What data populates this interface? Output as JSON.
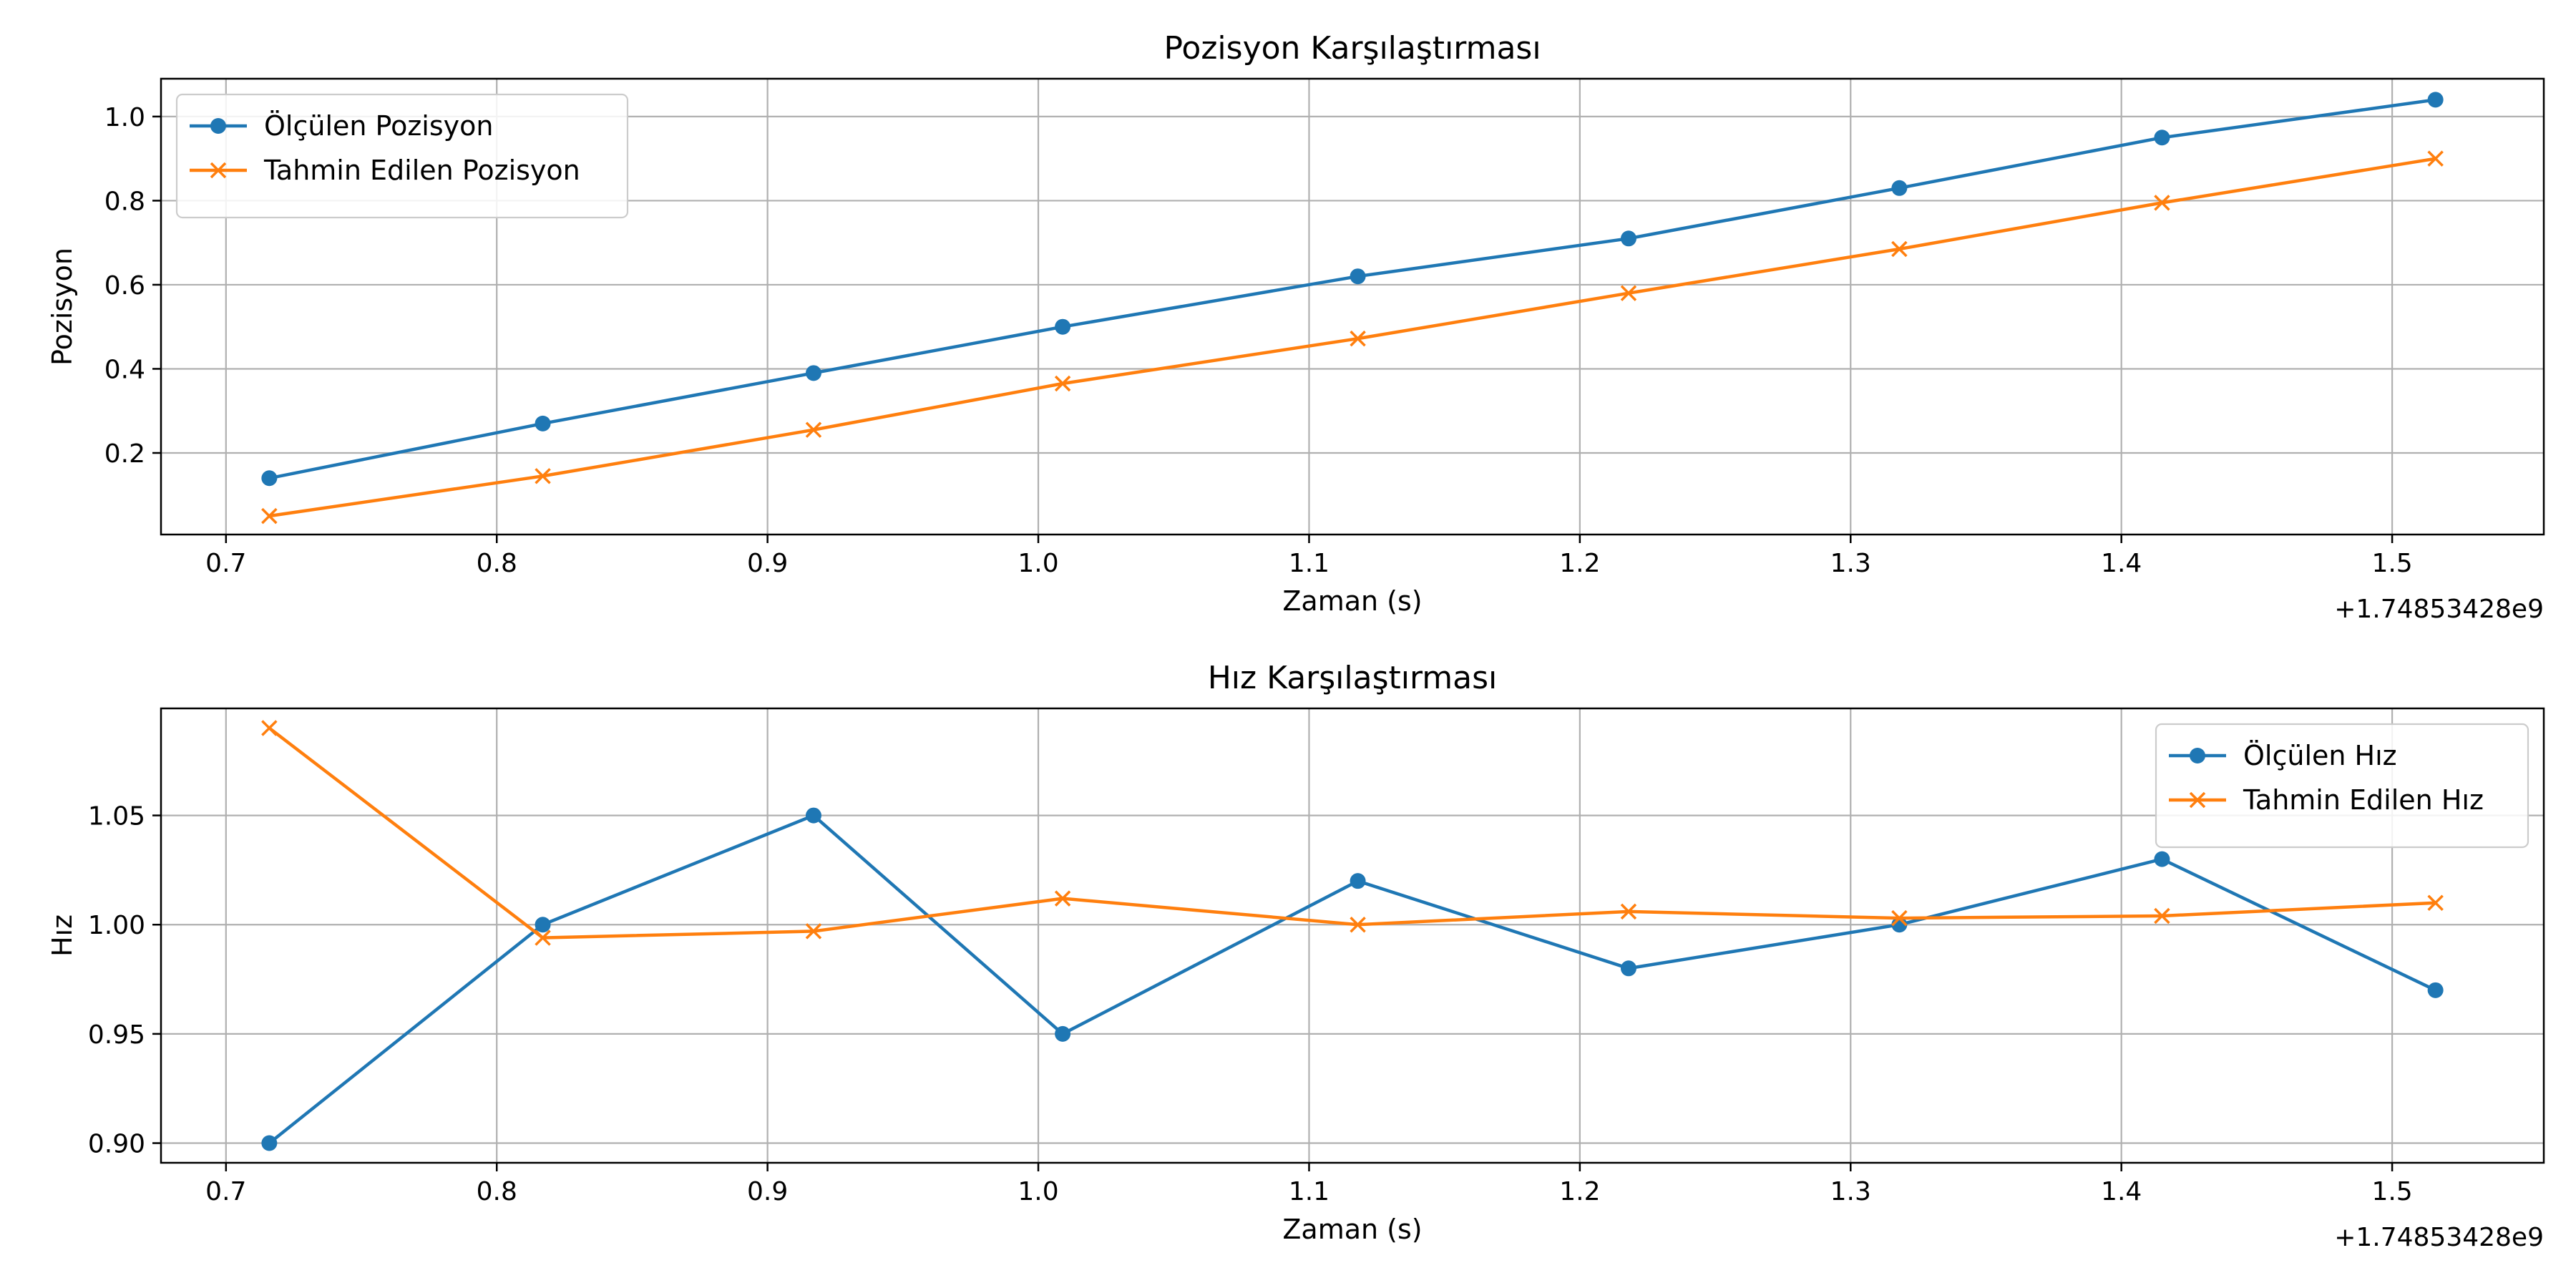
{
  "chart_data": [
    {
      "type": "line",
      "title": "Pozisyon Karşılaştırması",
      "xlabel": "Zaman (s)",
      "ylabel": "Pozisyon",
      "x_offset_label": "+1.74853428e9",
      "grid": true,
      "legend_position": "upper-left",
      "xlim": [
        0.676,
        1.556
      ],
      "ylim": [
        0.006,
        1.09
      ],
      "x_ticks": [
        "0.7",
        "0.8",
        "0.9",
        "1.0",
        "1.1",
        "1.2",
        "1.3",
        "1.4",
        "1.5"
      ],
      "y_ticks": [
        "0.2",
        "0.4",
        "0.6",
        "0.8",
        "1.0"
      ],
      "x": [
        0.716,
        0.817,
        0.917,
        1.009,
        1.118,
        1.218,
        1.318,
        1.415,
        1.516
      ],
      "series": [
        {
          "name": "Ölçülen Pozisyon",
          "color": "#1f77b4",
          "marker": "circle",
          "values": [
            0.14,
            0.27,
            0.39,
            0.5,
            0.62,
            0.71,
            0.83,
            0.95,
            1.04
          ]
        },
        {
          "name": "Tahmin Edilen Pozisyon",
          "color": "#ff7f0e",
          "marker": "x",
          "values": [
            0.05,
            0.145,
            0.255,
            0.365,
            0.472,
            0.58,
            0.685,
            0.795,
            0.9
          ]
        }
      ]
    },
    {
      "type": "line",
      "title": "Hız Karşılaştırması",
      "xlabel": "Zaman (s)",
      "ylabel": "Hız",
      "x_offset_label": "+1.74853428e9",
      "grid": true,
      "legend_position": "upper-right",
      "xlim": [
        0.676,
        1.556
      ],
      "ylim": [
        0.891,
        1.099
      ],
      "x_ticks": [
        "0.7",
        "0.8",
        "0.9",
        "1.0",
        "1.1",
        "1.2",
        "1.3",
        "1.4",
        "1.5"
      ],
      "y_ticks": [
        "0.90",
        "0.95",
        "1.00",
        "1.05"
      ],
      "x": [
        0.716,
        0.817,
        0.917,
        1.009,
        1.118,
        1.218,
        1.318,
        1.415,
        1.516
      ],
      "series": [
        {
          "name": "Ölçülen Hız",
          "color": "#1f77b4",
          "marker": "circle",
          "values": [
            0.9,
            1.0,
            1.05,
            0.95,
            1.02,
            0.98,
            1.0,
            1.03,
            0.97
          ]
        },
        {
          "name": "Tahmin Edilen Hız",
          "color": "#ff7f0e",
          "marker": "x",
          "values": [
            1.09,
            0.994,
            0.997,
            1.012,
            1.0,
            1.006,
            1.003,
            1.004,
            1.01
          ]
        }
      ]
    }
  ]
}
